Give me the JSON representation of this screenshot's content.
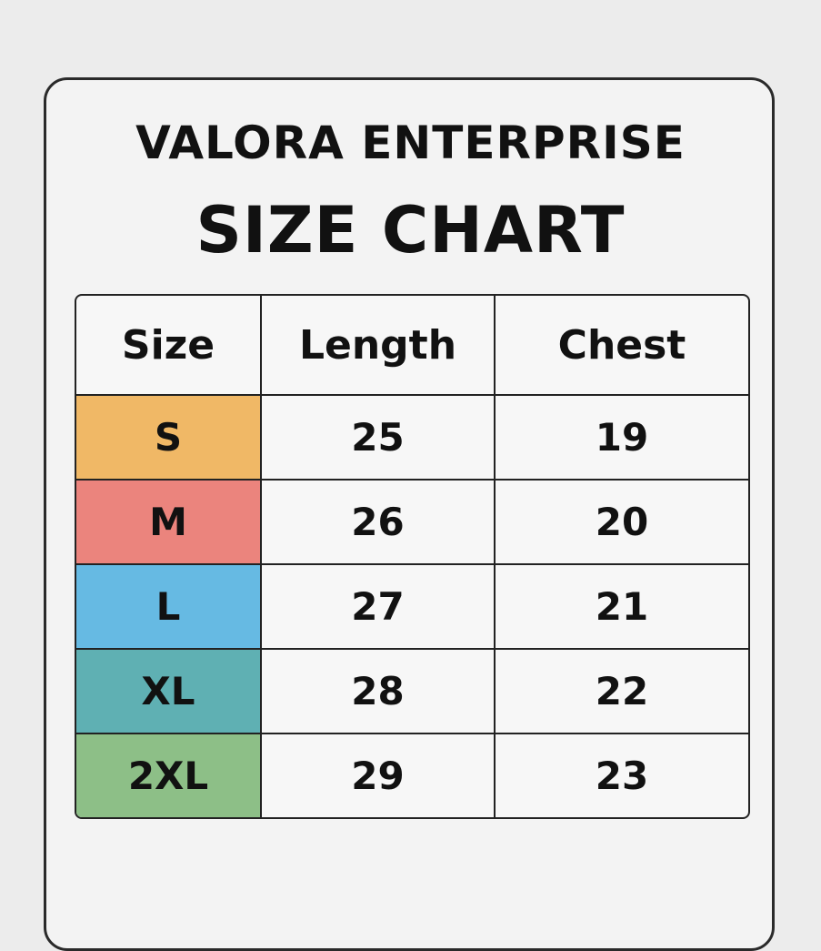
{
  "title_line1": "VALORA ENTERPRISE",
  "title_line2": "SIZE CHART",
  "table": {
    "headers": [
      "Size",
      "Length",
      "Chest"
    ],
    "rows": [
      {
        "size": "S",
        "length": "25",
        "chest": "19",
        "color": "#f0b866"
      },
      {
        "size": "M",
        "length": "26",
        "chest": "20",
        "color": "#eb847d"
      },
      {
        "size": "L",
        "length": "27",
        "chest": "21",
        "color": "#66bae3"
      },
      {
        "size": "XL",
        "length": "28",
        "chest": "22",
        "color": "#5fb0b3"
      },
      {
        "size": "2XL",
        "length": "29",
        "chest": "23",
        "color": "#8dbf87"
      }
    ]
  }
}
